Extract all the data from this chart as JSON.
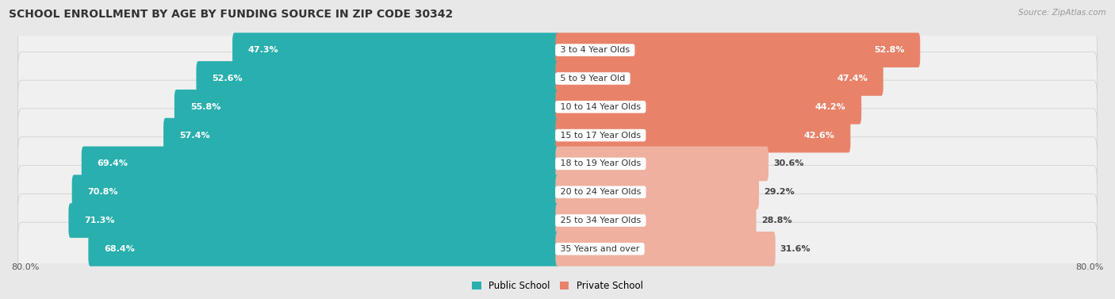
{
  "title": "SCHOOL ENROLLMENT BY AGE BY FUNDING SOURCE IN ZIP CODE 30342",
  "source": "Source: ZipAtlas.com",
  "categories": [
    "3 to 4 Year Olds",
    "5 to 9 Year Old",
    "10 to 14 Year Olds",
    "15 to 17 Year Olds",
    "18 to 19 Year Olds",
    "20 to 24 Year Olds",
    "25 to 34 Year Olds",
    "35 Years and over"
  ],
  "public_values": [
    47.3,
    52.6,
    55.8,
    57.4,
    69.4,
    70.8,
    71.3,
    68.4
  ],
  "private_values": [
    52.8,
    47.4,
    44.2,
    42.6,
    30.6,
    29.2,
    28.8,
    31.6
  ],
  "public_color_light": "#7DD4D4",
  "public_color_dark": "#2AAFAF",
  "private_color_dark": "#E8836A",
  "private_color_light": "#EFB0A0",
  "public_label": "Public School",
  "private_label": "Private School",
  "axis_label_left": "80.0%",
  "axis_label_right": "80.0%",
  "background_color": "#e8e8e8",
  "row_bg_color": "#f0f0f0",
  "bar_height": 0.62,
  "x_max": 80.0,
  "title_fontsize": 10,
  "source_fontsize": 7.5,
  "label_fontsize": 8,
  "category_fontsize": 8,
  "legend_fontsize": 8.5,
  "axis_tick_fontsize": 8,
  "dark_threshold": 40.0
}
